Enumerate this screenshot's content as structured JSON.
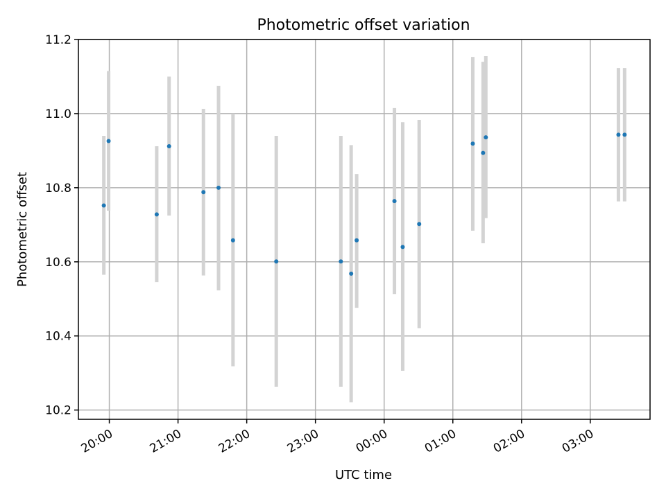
{
  "chart_data": {
    "type": "scatter",
    "title": "Photometric offset variation",
    "xlabel": "UTC time",
    "ylabel": "Photometric offset",
    "x_unit": "hours (UTC, values past 24 are after midnight)",
    "xlim": [
      19.55,
      27.87
    ],
    "ylim": [
      10.175,
      11.2
    ],
    "grid": true,
    "x_ticks": [
      {
        "value": 20,
        "label": "20:00"
      },
      {
        "value": 21,
        "label": "21:00"
      },
      {
        "value": 22,
        "label": "22:00"
      },
      {
        "value": 23,
        "label": "23:00"
      },
      {
        "value": 24,
        "label": "00:00"
      },
      {
        "value": 25,
        "label": "01:00"
      },
      {
        "value": 26,
        "label": "02:00"
      },
      {
        "value": 27,
        "label": "03:00"
      }
    ],
    "y_ticks": [
      {
        "value": 10.2,
        "label": "10.2"
      },
      {
        "value": 10.4,
        "label": "10.4"
      },
      {
        "value": 10.6,
        "label": "10.6"
      },
      {
        "value": 10.8,
        "label": "10.8"
      },
      {
        "value": 11.0,
        "label": "11.0"
      },
      {
        "value": 11.2,
        "label": "11.2"
      }
    ],
    "series": [
      {
        "marker_color": "#1f77b4",
        "errorbar_color": "#d3d3d3",
        "points": [
          {
            "time": "19:55",
            "x": 19.92,
            "y": 10.752,
            "ylo": 10.565,
            "yhi": 10.94
          },
          {
            "time": "19:59",
            "x": 19.99,
            "y": 10.926,
            "ylo": 10.738,
            "yhi": 11.115
          },
          {
            "time": "20:41",
            "x": 20.69,
            "y": 10.728,
            "ylo": 10.545,
            "yhi": 10.912
          },
          {
            "time": "20:52",
            "x": 20.87,
            "y": 10.912,
            "ylo": 10.725,
            "yhi": 11.1
          },
          {
            "time": "21:22",
            "x": 21.37,
            "y": 10.788,
            "ylo": 10.563,
            "yhi": 11.013
          },
          {
            "time": "21:35",
            "x": 21.59,
            "y": 10.8,
            "ylo": 10.523,
            "yhi": 11.075
          },
          {
            "time": "21:48",
            "x": 21.8,
            "y": 10.658,
            "ylo": 10.318,
            "yhi": 11.0
          },
          {
            "time": "22:25",
            "x": 22.43,
            "y": 10.601,
            "ylo": 10.263,
            "yhi": 10.94
          },
          {
            "time": "23:22",
            "x": 23.37,
            "y": 10.601,
            "ylo": 10.263,
            "yhi": 10.94
          },
          {
            "time": "23:31",
            "x": 23.52,
            "y": 10.568,
            "ylo": 10.221,
            "yhi": 10.915
          },
          {
            "time": "23:36",
            "x": 23.6,
            "y": 10.658,
            "ylo": 10.476,
            "yhi": 10.837
          },
          {
            "time": "00:09",
            "x": 24.15,
            "y": 10.764,
            "ylo": 10.513,
            "yhi": 11.015
          },
          {
            "time": "00:16",
            "x": 24.27,
            "y": 10.64,
            "ylo": 10.306,
            "yhi": 10.977
          },
          {
            "time": "00:30",
            "x": 24.51,
            "y": 10.702,
            "ylo": 10.421,
            "yhi": 10.983
          },
          {
            "time": "01:17",
            "x": 25.29,
            "y": 10.919,
            "ylo": 10.684,
            "yhi": 11.153
          },
          {
            "time": "01:26",
            "x": 25.44,
            "y": 10.894,
            "ylo": 10.65,
            "yhi": 11.14
          },
          {
            "time": "01:28",
            "x": 25.48,
            "y": 10.936,
            "ylo": 10.718,
            "yhi": 11.155
          },
          {
            "time": "03:24",
            "x": 27.41,
            "y": 10.943,
            "ylo": 10.763,
            "yhi": 11.123
          },
          {
            "time": "03:30",
            "x": 27.5,
            "y": 10.943,
            "ylo": 10.763,
            "yhi": 11.123
          }
        ]
      }
    ]
  }
}
